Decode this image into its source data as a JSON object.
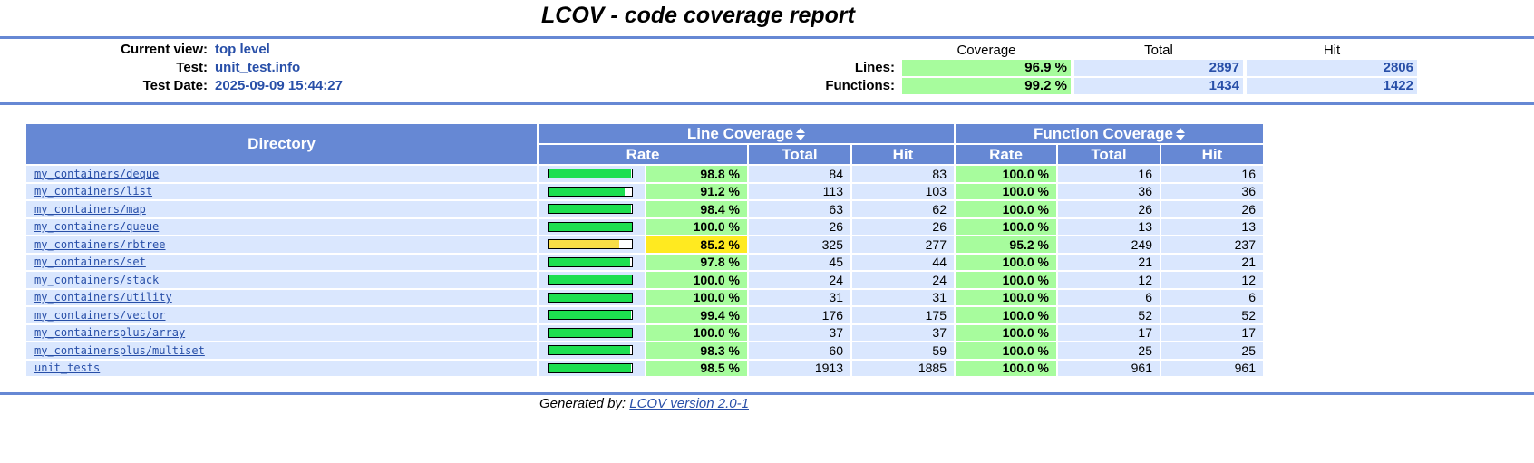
{
  "title": "LCOV - code coverage report",
  "header": {
    "current_view_label": "Current view:",
    "current_view_value": "top level",
    "test_label": "Test:",
    "test_value": "unit_test.info",
    "test_date_label": "Test Date:",
    "test_date_value": "2025-09-09 15:44:27"
  },
  "summary": {
    "col_coverage": "Coverage",
    "col_total": "Total",
    "col_hit": "Hit",
    "lines_label": "Lines:",
    "lines_coverage": "96.9 %",
    "lines_total": "2897",
    "lines_hit": "2806",
    "functions_label": "Functions:",
    "functions_coverage": "99.2 %",
    "functions_total": "1434",
    "functions_hit": "1422"
  },
  "table": {
    "col_directory": "Directory",
    "col_line_coverage": "Line Coverage",
    "col_function_coverage": "Function Coverage",
    "col_rate": "Rate",
    "col_total": "Total",
    "col_hit": "Hit",
    "rows": [
      {
        "dir": "my_containers/deque",
        "line_rate": "98.8 %",
        "line_pct": 98.8,
        "line_total": "84",
        "line_hit": "83",
        "func_rate": "100.0 %",
        "func_total": "16",
        "func_hit": "16",
        "level": "hi"
      },
      {
        "dir": "my_containers/list",
        "line_rate": "91.2 %",
        "line_pct": 91.2,
        "line_total": "113",
        "line_hit": "103",
        "func_rate": "100.0 %",
        "func_total": "36",
        "func_hit": "36",
        "level": "hi"
      },
      {
        "dir": "my_containers/map",
        "line_rate": "98.4 %",
        "line_pct": 98.4,
        "line_total": "63",
        "line_hit": "62",
        "func_rate": "100.0 %",
        "func_total": "26",
        "func_hit": "26",
        "level": "hi"
      },
      {
        "dir": "my_containers/queue",
        "line_rate": "100.0 %",
        "line_pct": 100.0,
        "line_total": "26",
        "line_hit": "26",
        "func_rate": "100.0 %",
        "func_total": "13",
        "func_hit": "13",
        "level": "hi"
      },
      {
        "dir": "my_containers/rbtree",
        "line_rate": "85.2 %",
        "line_pct": 85.2,
        "line_total": "325",
        "line_hit": "277",
        "func_rate": "95.2 %",
        "func_total": "249",
        "func_hit": "237",
        "level": "med"
      },
      {
        "dir": "my_containers/set",
        "line_rate": "97.8 %",
        "line_pct": 97.8,
        "line_total": "45",
        "line_hit": "44",
        "func_rate": "100.0 %",
        "func_total": "21",
        "func_hit": "21",
        "level": "hi"
      },
      {
        "dir": "my_containers/stack",
        "line_rate": "100.0 %",
        "line_pct": 100.0,
        "line_total": "24",
        "line_hit": "24",
        "func_rate": "100.0 %",
        "func_total": "12",
        "func_hit": "12",
        "level": "hi"
      },
      {
        "dir": "my_containers/utility",
        "line_rate": "100.0 %",
        "line_pct": 100.0,
        "line_total": "31",
        "line_hit": "31",
        "func_rate": "100.0 %",
        "func_total": "6",
        "func_hit": "6",
        "level": "hi"
      },
      {
        "dir": "my_containers/vector",
        "line_rate": "99.4 %",
        "line_pct": 99.4,
        "line_total": "176",
        "line_hit": "175",
        "func_rate": "100.0 %",
        "func_total": "52",
        "func_hit": "52",
        "level": "hi"
      },
      {
        "dir": "my_containersplus/array",
        "line_rate": "100.0 %",
        "line_pct": 100.0,
        "line_total": "37",
        "line_hit": "37",
        "func_rate": "100.0 %",
        "func_total": "17",
        "func_hit": "17",
        "level": "hi"
      },
      {
        "dir": "my_containersplus/multiset",
        "line_rate": "98.3 %",
        "line_pct": 98.3,
        "line_total": "60",
        "line_hit": "59",
        "func_rate": "100.0 %",
        "func_total": "25",
        "func_hit": "25",
        "level": "hi"
      },
      {
        "dir": "unit_tests",
        "line_rate": "98.5 %",
        "line_pct": 98.5,
        "line_total": "1913",
        "line_hit": "1885",
        "func_rate": "100.0 %",
        "func_total": "961",
        "func_hit": "961",
        "level": "hi"
      }
    ]
  },
  "footer": {
    "prefix": "Generated by:",
    "link": "LCOV version 2.0-1"
  },
  "colors": {
    "rule": "#6688d4",
    "header_bg": "#6688d4",
    "cell_bg": "#dae7fe",
    "link": "#284fa8",
    "cov_hi": "#a7fc9d",
    "cov_med": "#ffea20",
    "bar_hi": "#1ddf50",
    "bar_med": "#f8de47"
  }
}
